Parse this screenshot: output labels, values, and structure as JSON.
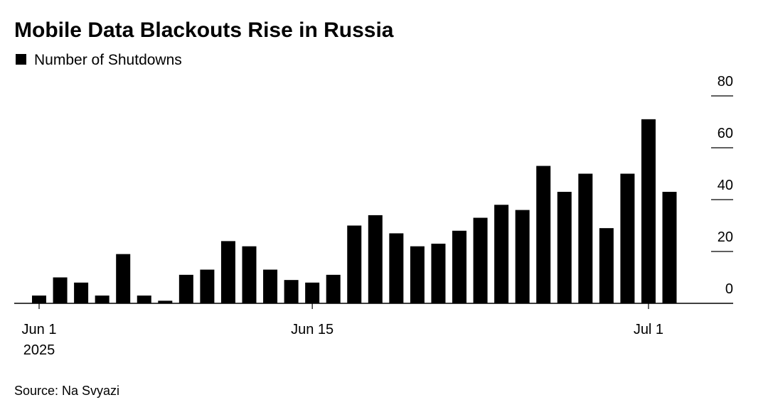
{
  "chart_data": {
    "type": "bar",
    "title": "Mobile Data Blackouts Rise in Russia",
    "categories": [
      "Jun 1",
      null,
      null,
      null,
      null,
      null,
      null,
      null,
      null,
      null,
      null,
      null,
      null,
      "Jun 15",
      null,
      null,
      null,
      null,
      null,
      null,
      null,
      null,
      null,
      null,
      null,
      null,
      null,
      null,
      null,
      "Jul 1",
      null
    ],
    "x_sublabel": "2025",
    "series": [
      {
        "name": "Number of Shutdowns",
        "color": "#000000",
        "values": [
          3,
          10,
          8,
          3,
          19,
          3,
          1,
          11,
          13,
          24,
          22,
          13,
          9,
          8,
          11,
          30,
          34,
          27,
          22,
          23,
          28,
          33,
          38,
          36,
          53,
          43,
          50,
          29,
          50,
          71,
          43
        ]
      }
    ],
    "ylim": [
      0,
      80
    ],
    "yticks": [
      0,
      20,
      40,
      60,
      80
    ],
    "source": "Source: Na Svyazi"
  }
}
